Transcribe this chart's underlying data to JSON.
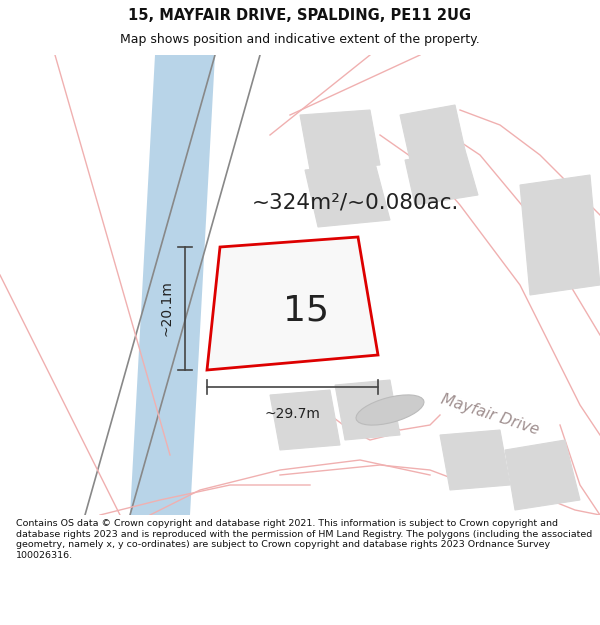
{
  "title": "15, MAYFAIR DRIVE, SPALDING, PE11 2UG",
  "subtitle": "Map shows position and indicative extent of the property.",
  "area_text": "~324m²/~0.080ac.",
  "number_label": "15",
  "dim_width": "~29.7m",
  "dim_height": "~20.1m",
  "road_label": "Mayfair Drive",
  "footer": "Contains OS data © Crown copyright and database right 2021. This information is subject to Crown copyright and database rights 2023 and is reproduced with the permission of HM Land Registry. The polygons (including the associated geometry, namely x, y co-ordinates) are subject to Crown copyright and database rights 2023 Ordnance Survey 100026316.",
  "bg_color": "#ffffff",
  "map_bg": "#ffffff",
  "plot_fill": "#f0f0f0",
  "plot_outline": "#dd0000",
  "neighbor_fill": "#d8d8d8",
  "neighbor_outline": "#d8d8d8",
  "blue_line_color": "#b8d4e8",
  "pink_line_color": "#f0b0b0",
  "gray_line_color": "#b0b0b0",
  "road_area_color": "#e8e0dc",
  "dim_line_color": "#444444",
  "text_color": "#222222",
  "road_label_color": "#a09090"
}
